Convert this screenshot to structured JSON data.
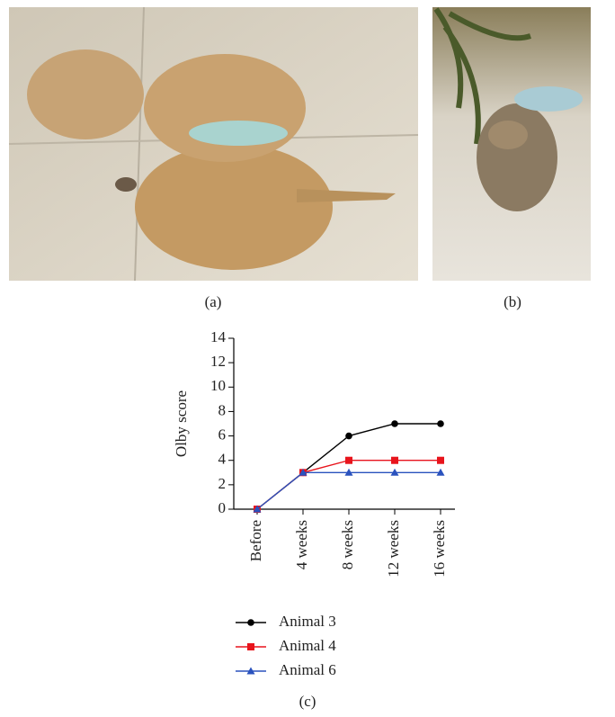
{
  "panel_labels": [
    "(a)",
    "(b)",
    "(c)"
  ],
  "chart_data": {
    "type": "line",
    "ylabel": "Olby score",
    "categories": [
      "Before",
      "4 weeks",
      "8 weeks",
      "12 weeks",
      "16 weeks"
    ],
    "series": [
      {
        "name": "Animal 3",
        "color": "#000000",
        "marker": "circle",
        "values": [
          0,
          3,
          6,
          7,
          7
        ]
      },
      {
        "name": "Animal 4",
        "color": "#e8141c",
        "marker": "square",
        "values": [
          0,
          3,
          4,
          4,
          4
        ]
      },
      {
        "name": "Animal 6",
        "color": "#2a52be",
        "marker": "triangle",
        "values": [
          0,
          3,
          3,
          3,
          3
        ]
      }
    ],
    "ylim": [
      0,
      14
    ],
    "yticks": [
      0,
      2,
      4,
      6,
      8,
      10,
      12,
      14
    ],
    "grid": false
  }
}
